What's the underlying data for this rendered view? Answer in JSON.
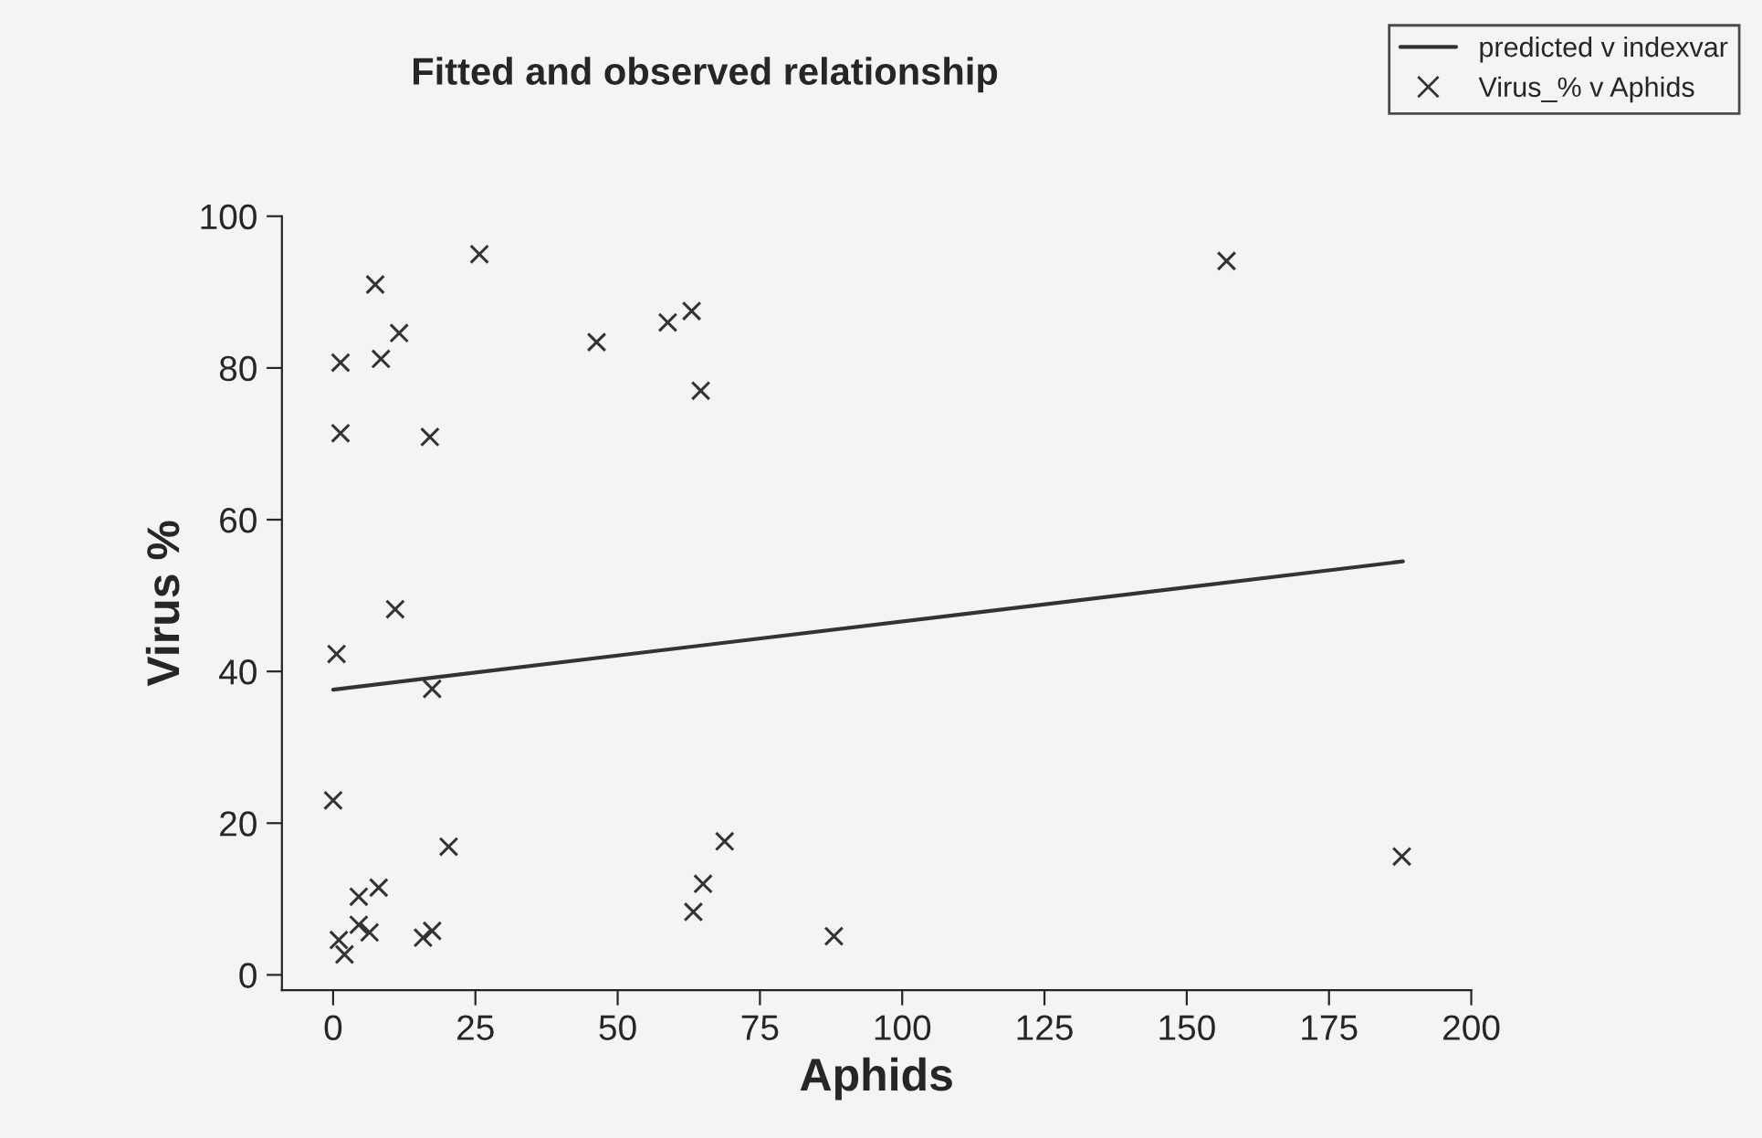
{
  "chart_data": {
    "type": "scatter",
    "title": "Fitted and observed relationship",
    "xlabel": "Aphids",
    "ylabel": "Virus %",
    "xlim": [
      -9,
      200
    ],
    "ylim": [
      -2,
      100
    ],
    "xticks": [
      0,
      25,
      50,
      75,
      100,
      125,
      150,
      175,
      200
    ],
    "yticks": [
      0,
      20,
      40,
      60,
      80,
      100
    ],
    "grid": false,
    "legend": "top right",
    "marker": "cross",
    "series": [
      {
        "name": "predicted v indexvar",
        "type": "line",
        "color": "#333333",
        "marker": "none",
        "line_style": "solid",
        "x": [
          0,
          188
        ],
        "values": [
          37.6,
          54.5
        ]
      },
      {
        "name": "Virus_% v Aphids",
        "color": "#333333",
        "x": [
          25.7,
          7.4,
          11.6,
          1.3,
          8.4,
          1.3,
          17,
          46.3,
          58.8,
          63,
          64.6,
          10.9,
          0.6,
          17.4,
          0,
          20.3,
          4.5,
          8,
          4.5,
          6.4,
          1,
          2,
          15.8,
          17.4,
          63.3,
          65,
          68.8,
          157,
          88,
          187.8
        ],
        "values": [
          95,
          91,
          84.6,
          80.7,
          81.2,
          71.4,
          70.9,
          83.4,
          86,
          87.5,
          77,
          48.2,
          42.3,
          37.7,
          23,
          16.9,
          10.3,
          11.5,
          6.6,
          5.6,
          4.6,
          2.7,
          4.9,
          5.8,
          8.3,
          12,
          17.6,
          94.1,
          5.1,
          15.6
        ]
      }
    ]
  }
}
